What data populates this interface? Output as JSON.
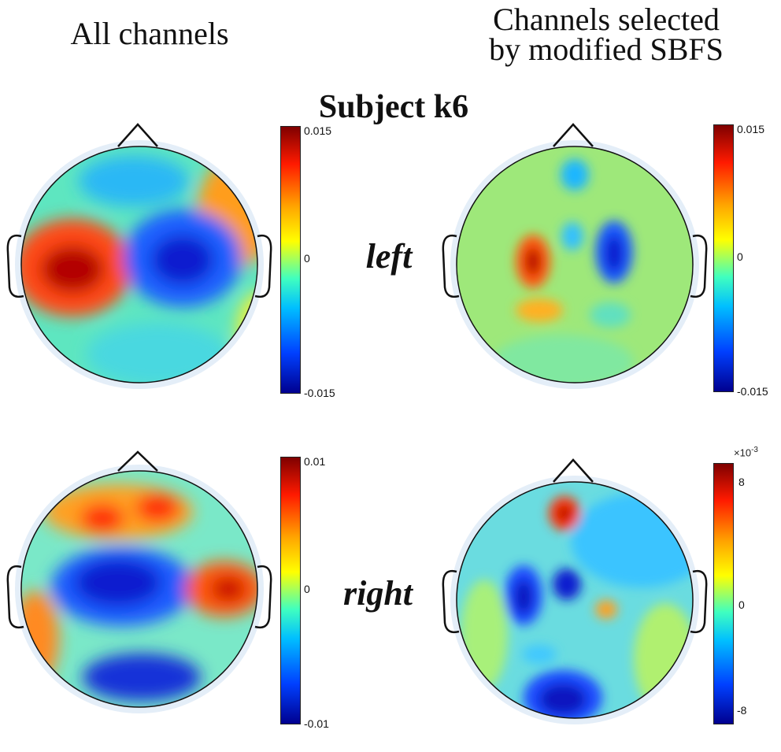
{
  "headers": {
    "left": "All channels",
    "right_line1": "Channels selected",
    "right_line2": "by modified SBFS"
  },
  "subject_title": "Subject k6",
  "conditions": {
    "left": "left",
    "right": "right"
  },
  "colorbars": {
    "top_left": {
      "max": "0.015",
      "mid": "0",
      "min": "-0.015"
    },
    "top_right": {
      "max": "0.015",
      "mid": "0",
      "min": "-0.015"
    },
    "bottom_left": {
      "max": "0.01",
      "mid": "0",
      "min": "-0.01"
    },
    "bottom_right": {
      "max": "8",
      "mid": "0",
      "min": "-8",
      "exponent_base": "×10",
      "exponent_power": "-3"
    }
  },
  "colormap": [
    "#00008f",
    "#0040ff",
    "#00bfff",
    "#40ffbf",
    "#ffff00",
    "#ffa500",
    "#ff1a00",
    "#7f0000"
  ],
  "maps": {
    "top_left": [
      {
        "label": "frontal-weak-negative",
        "value": -0.35
      },
      {
        "label": "right-frontal-positive",
        "value": 0.55
      },
      {
        "label": "left-central-positive",
        "value": 1.0
      },
      {
        "label": "right-central-negative",
        "value": -1.0
      },
      {
        "label": "posterior-mild-negative",
        "value": -0.15
      }
    ],
    "top_right": [
      {
        "label": "fz-negative",
        "value": -0.4
      },
      {
        "label": "c3-positive",
        "value": 0.85
      },
      {
        "label": "cz-negative",
        "value": -0.35
      },
      {
        "label": "c4-negative",
        "value": -0.95
      },
      {
        "label": "cpz-positive",
        "value": 0.55
      },
      {
        "label": "pz-mild-negative",
        "value": -0.15
      }
    ],
    "bottom_left": [
      {
        "label": "frontal-positive-left",
        "value": 0.8
      },
      {
        "label": "frontal-positive-right",
        "value": 0.75
      },
      {
        "label": "central-negative",
        "value": -1.0
      },
      {
        "label": "right-temporal-positive",
        "value": 0.85
      },
      {
        "label": "left-temporal-positive",
        "value": 0.6
      },
      {
        "label": "occipital-negative",
        "value": -0.9
      }
    ],
    "bottom_right": [
      {
        "label": "fpz-positive",
        "value": 0.9
      },
      {
        "label": "c3-negative",
        "value": -0.95
      },
      {
        "label": "cz-negative",
        "value": -0.9
      },
      {
        "label": "c4-positive",
        "value": 0.6
      },
      {
        "label": "cpz-negative",
        "value": -0.45
      },
      {
        "label": "occipital-negative",
        "value": -1.0
      }
    ]
  }
}
